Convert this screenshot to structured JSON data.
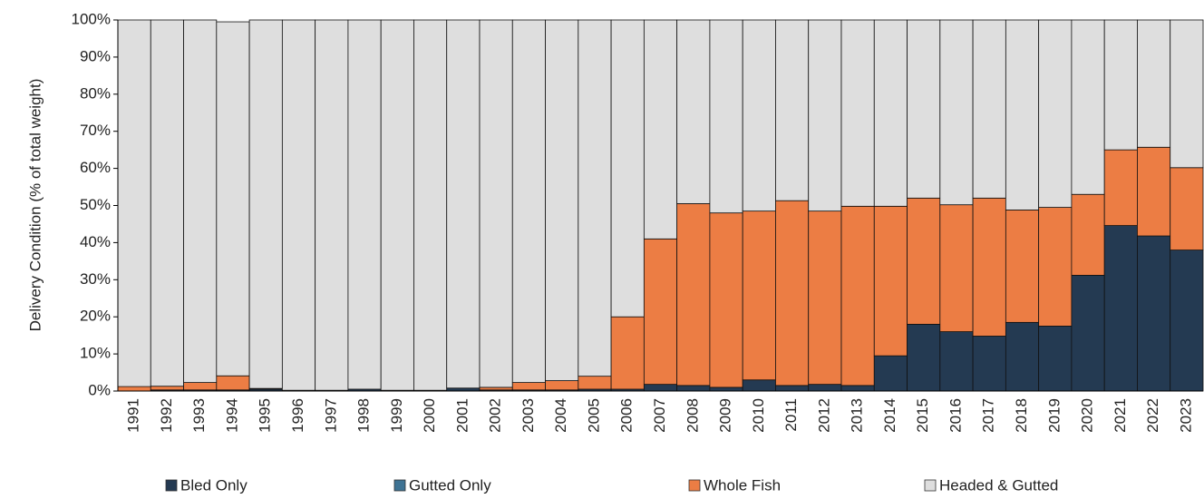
{
  "chart_data": {
    "type": "stacked_bar",
    "y_label": "Delivery Condition (% of total weight)",
    "categories": [
      "1991",
      "1992",
      "1993",
      "1994",
      "1995",
      "1996",
      "1997",
      "1998",
      "1999",
      "2000",
      "2001",
      "2002",
      "2003",
      "2004",
      "2005",
      "2006",
      "2007",
      "2008",
      "2009",
      "2010",
      "2011",
      "2012",
      "2013",
      "2014",
      "2015",
      "2016",
      "2017",
      "2018",
      "2019",
      "2020",
      "2021",
      "2022",
      "2023"
    ],
    "series": [
      {
        "name": "Bled Only",
        "color": "#243a52",
        "values": [
          0,
          0.3,
          0.3,
          0.3,
          0.5,
          0.2,
          0.2,
          0.5,
          0.2,
          0.2,
          0.8,
          0.3,
          0.3,
          0.3,
          0.5,
          0.5,
          1.8,
          1.5,
          1.0,
          3.0,
          1.5,
          1.8,
          1.5,
          9.5,
          18,
          16,
          14.8,
          18.5,
          17.5,
          31.2,
          44.6,
          41.8,
          38
        ]
      },
      {
        "name": "Gutted Only",
        "color": "#3e7394",
        "values": [
          0,
          0,
          0,
          0,
          0,
          0,
          0,
          0,
          0,
          0,
          0,
          0,
          0,
          0,
          0,
          0,
          0,
          0,
          0,
          0,
          0,
          0,
          0,
          0,
          0,
          0,
          0,
          0,
          0,
          0,
          0,
          0,
          0
        ]
      },
      {
        "name": "Whole Fish",
        "color": "#ec7d44",
        "values": [
          1.2,
          1.0,
          2.0,
          3.8,
          0.2,
          0,
          0,
          0,
          0,
          0,
          0,
          0.7,
          2.0,
          2.5,
          3.5,
          19.5,
          39.2,
          49,
          47,
          45.5,
          49.8,
          46.7,
          48.3,
          40.3,
          34,
          34.2,
          37.2,
          30.3,
          32,
          21.8,
          20.4,
          23.9,
          22.2
        ]
      },
      {
        "name": "Headed & Gutted",
        "color": "#dedede",
        "values": [
          98.8,
          98.7,
          97.7,
          95.4,
          99.3,
          99.8,
          99.8,
          99.5,
          99.8,
          99.8,
          99.2,
          99.0,
          97.7,
          97.2,
          96.0,
          80.0,
          59.0,
          49.5,
          52.0,
          51.5,
          48.7,
          51.5,
          50.2,
          50.2,
          48.0,
          49.8,
          48.0,
          51.2,
          50.5,
          47.0,
          35.0,
          34.3,
          39.8
        ]
      }
    ],
    "ylim": [
      0,
      100
    ],
    "yticks": [
      {
        "value": 0,
        "label": "0%"
      },
      {
        "value": 10,
        "label": "10%"
      },
      {
        "value": 20,
        "label": "20%"
      },
      {
        "value": 30,
        "label": "30%"
      },
      {
        "value": 40,
        "label": "40%"
      },
      {
        "value": 50,
        "label": "50%"
      },
      {
        "value": 60,
        "label": "60%"
      },
      {
        "value": 70,
        "label": "70%"
      },
      {
        "value": 80,
        "label": "80%"
      },
      {
        "value": 90,
        "label": "90%"
      },
      {
        "value": 100,
        "label": "100%"
      }
    ],
    "legend": "bottom"
  }
}
